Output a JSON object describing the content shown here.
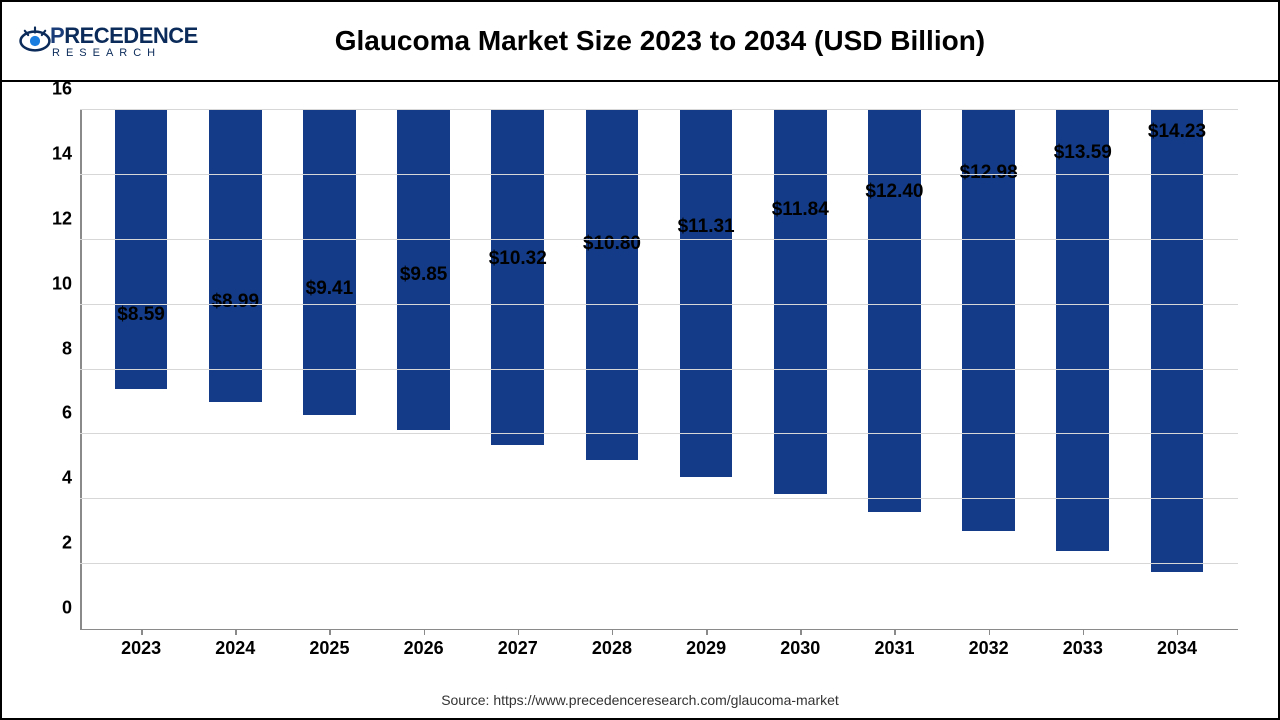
{
  "logo": {
    "main_prefix": "P",
    "main_rest": "RECEDENCE",
    "sub": "RESEARCH",
    "color": "#0b2b5a",
    "accent": "#1a7de0"
  },
  "chart": {
    "type": "bar",
    "title": "Glaucoma Market Size 2023 to 2034 (USD Billion)",
    "categories": [
      "2023",
      "2024",
      "2025",
      "2026",
      "2027",
      "2028",
      "2029",
      "2030",
      "2031",
      "2032",
      "2033",
      "2034"
    ],
    "values": [
      8.59,
      8.99,
      9.41,
      9.85,
      10.32,
      10.8,
      11.31,
      11.84,
      12.4,
      12.98,
      13.59,
      14.23
    ],
    "value_labels": [
      "$8.59",
      "$8.99",
      "$9.41",
      "$9.85",
      "$10.32",
      "$10.80",
      "$11.31",
      "$11.84",
      "$12.40",
      "$12.98",
      "$13.59",
      "$14.23"
    ],
    "bar_color": "#133b87",
    "ylim": [
      0,
      16
    ],
    "ytick_step": 2,
    "yticks": [
      0,
      2,
      4,
      6,
      8,
      10,
      12,
      14,
      16
    ],
    "grid_color": "#d7d7d7",
    "axis_color": "#8a8a8a",
    "background_color": "#ffffff",
    "title_fontsize": 28,
    "label_fontsize": 19,
    "tick_fontsize": 18,
    "bar_width": 0.56
  },
  "source": "Source: https://www.precedenceresearch.com/glaucoma-market"
}
